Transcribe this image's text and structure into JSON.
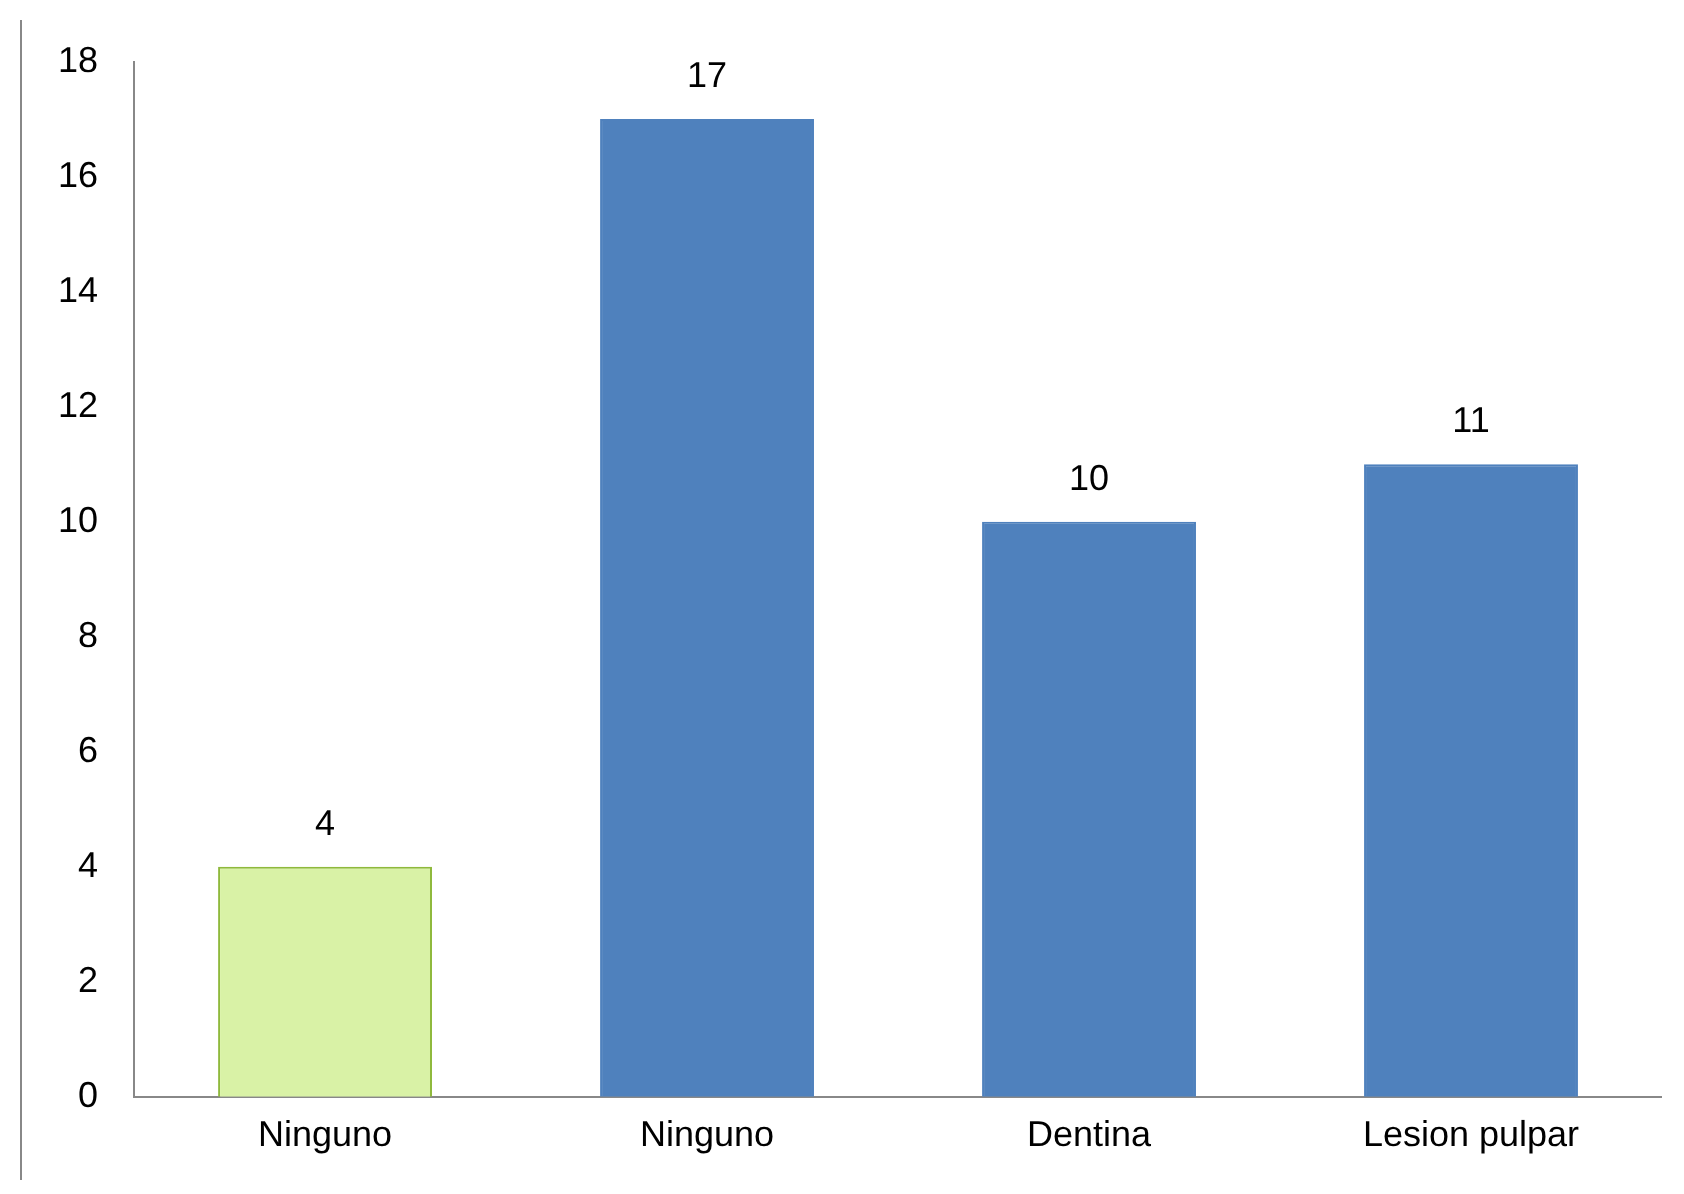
{
  "chart_data": {
    "type": "bar",
    "categories": [
      "Ninguno",
      "Ninguno",
      "Dentina",
      "Lesion pulpar"
    ],
    "values": [
      4,
      17,
      10,
      11
    ],
    "colors": [
      "#d9f2a6",
      "#4f81bd",
      "#4f81bd",
      "#4f81bd"
    ],
    "ylim": [
      0,
      18
    ],
    "yticks": [
      0,
      2,
      4,
      6,
      8,
      10,
      12,
      14,
      16,
      18
    ],
    "grid": false,
    "legend": false,
    "data_labels": true
  }
}
